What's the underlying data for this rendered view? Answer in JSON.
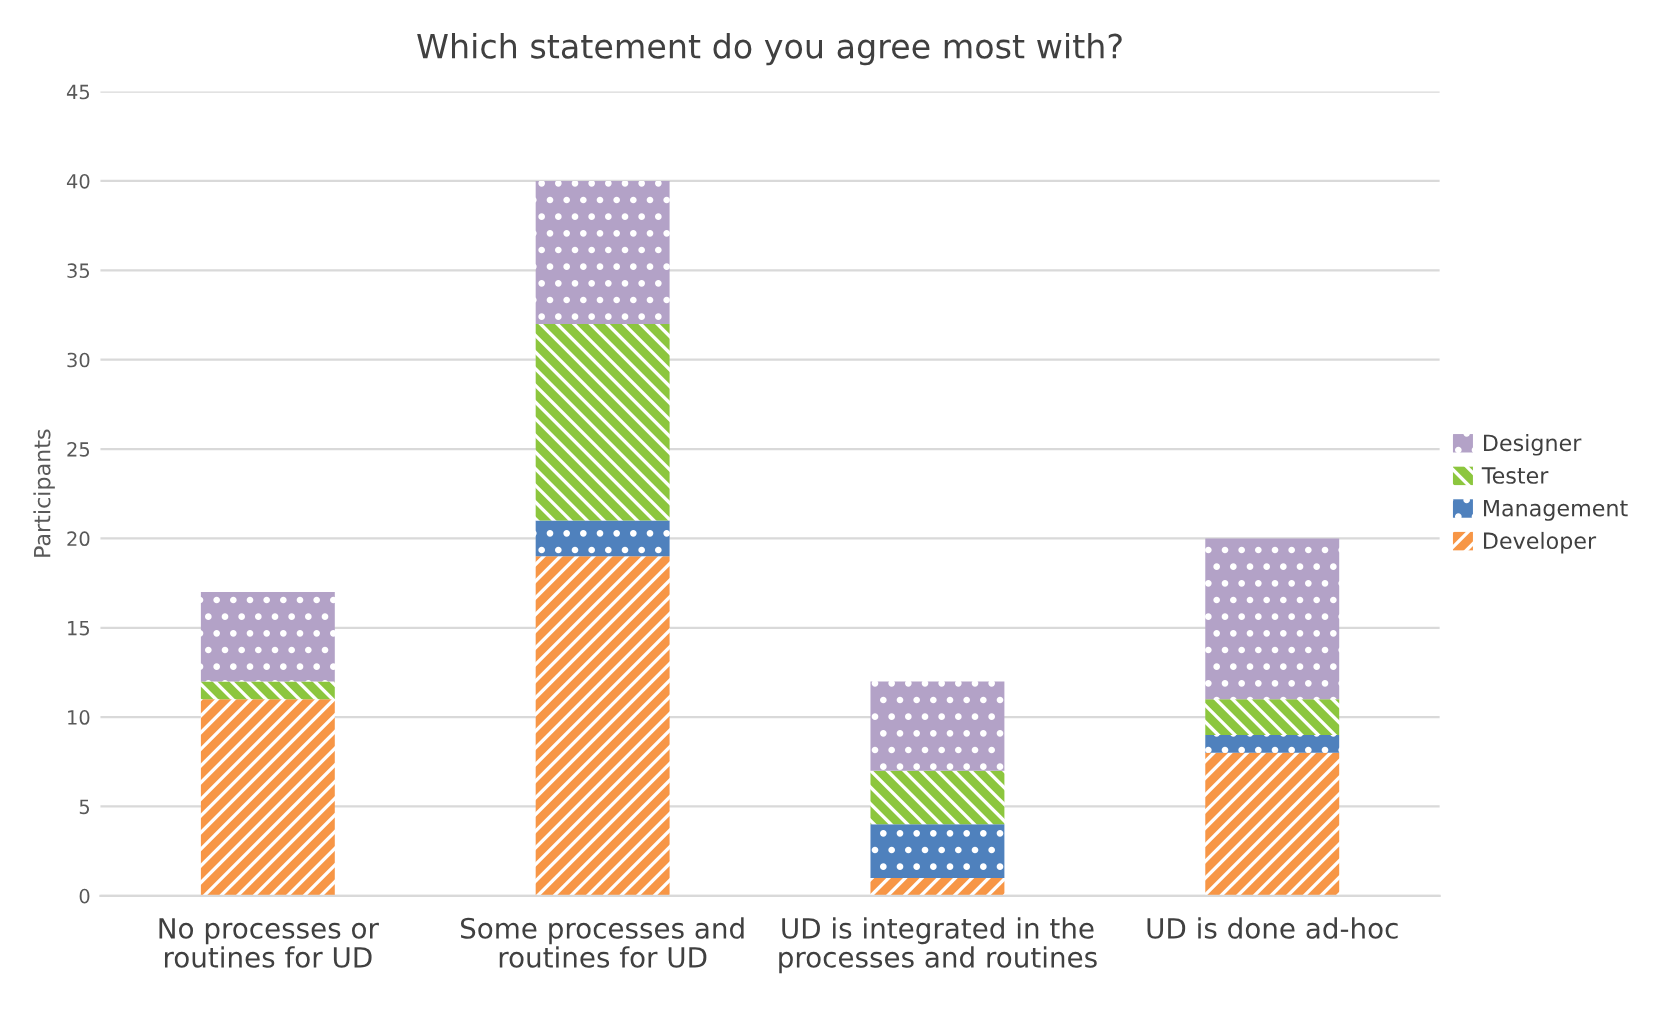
{
  "chart_data": {
    "type": "bar",
    "stacked": true,
    "title": "Which statement do you agree most with?",
    "ylabel": "Participants",
    "categories": [
      "No processes or routines for UD",
      "Some processes and routines for UD",
      "UD is integrated in the processes and routines",
      "UD is done ad-hoc"
    ],
    "series": [
      {
        "name": "Developer",
        "color": "#f79646",
        "values": [
          11,
          19,
          1,
          8
        ]
      },
      {
        "name": "Management",
        "color": "#4f81bd",
        "values": [
          0,
          2,
          3,
          1
        ]
      },
      {
        "name": "Tester",
        "color": "#8cc63e",
        "values": [
          1,
          11,
          3,
          2
        ]
      },
      {
        "name": "Designer",
        "color": "#b3a2c7",
        "values": [
          5,
          8,
          5,
          9
        ]
      }
    ],
    "ylim": [
      0,
      45
    ],
    "yticks": [
      0,
      5,
      10,
      15,
      20,
      25,
      30,
      35,
      40,
      45
    ],
    "grid": "y",
    "legend": "right"
  }
}
